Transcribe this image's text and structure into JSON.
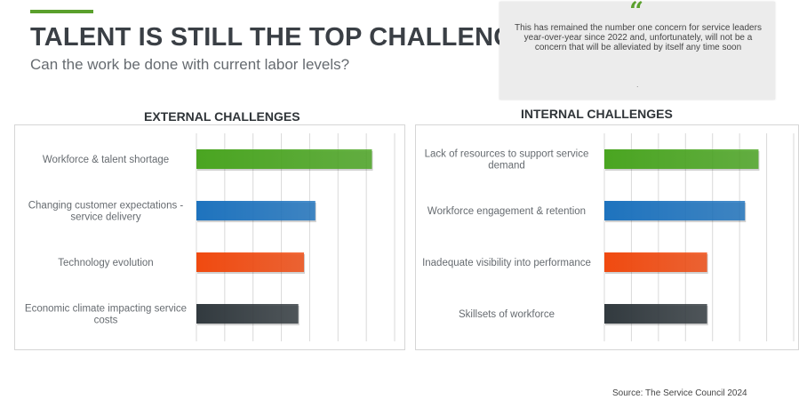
{
  "header": {
    "title": "TALENT IS STILL THE TOP CHALLENGE",
    "subtitle": "Can the work be done with current labor levels?"
  },
  "quote": {
    "mark": "“",
    "text": "This has remained the number one concern for service leaders year-over-year since 2022 and, unfortunately, will not be a concern that will be alleviated by itself any time soon",
    "trailing": "."
  },
  "source": "Source: The Service Council 2024",
  "colors": {
    "green": "#4aa521",
    "blue": "#1e73be",
    "orange": "#f04a10",
    "dark": "#323a3f",
    "accent": "#5aa02c"
  },
  "chart_data": [
    {
      "type": "bar",
      "orientation": "horizontal",
      "title": "EXTERNAL CHALLENGES",
      "categories": [
        "Workforce & talent shortage",
        "Changing customer expectations - service delivery",
        "Technology evolution",
        "Economic climate impacting service costs"
      ],
      "category_lines": [
        [
          "Workforce & talent shortage"
        ],
        [
          "Changing customer expectations -",
          "service delivery"
        ],
        [
          "Technology evolution"
        ],
        [
          "Economic climate impacting service",
          "costs"
        ]
      ],
      "values": [
        62,
        42,
        38,
        36
      ],
      "bar_colors": [
        "#4aa521",
        "#1e73be",
        "#f04a10",
        "#323a3f"
      ],
      "xlim": [
        0,
        70
      ],
      "grid": true,
      "grid_step": 10
    },
    {
      "type": "bar",
      "orientation": "horizontal",
      "title": "INTERNAL CHALLENGES",
      "categories": [
        "Lack of resources to support service demand",
        "Workforce engagement & retention",
        "Inadequate visibility into performance",
        "Skillsets of workforce"
      ],
      "category_lines": [
        [
          "Lack of resources to support service",
          "demand"
        ],
        [
          "Workforce engagement & retention"
        ],
        [
          "Inadequate visibility into performance"
        ],
        [
          "Skillsets of workforce"
        ]
      ],
      "values": [
        57,
        52,
        38,
        38
      ],
      "bar_colors": [
        "#4aa521",
        "#1e73be",
        "#f04a10",
        "#323a3f"
      ],
      "xlim": [
        0,
        70
      ],
      "grid": true,
      "grid_step": 10
    }
  ]
}
